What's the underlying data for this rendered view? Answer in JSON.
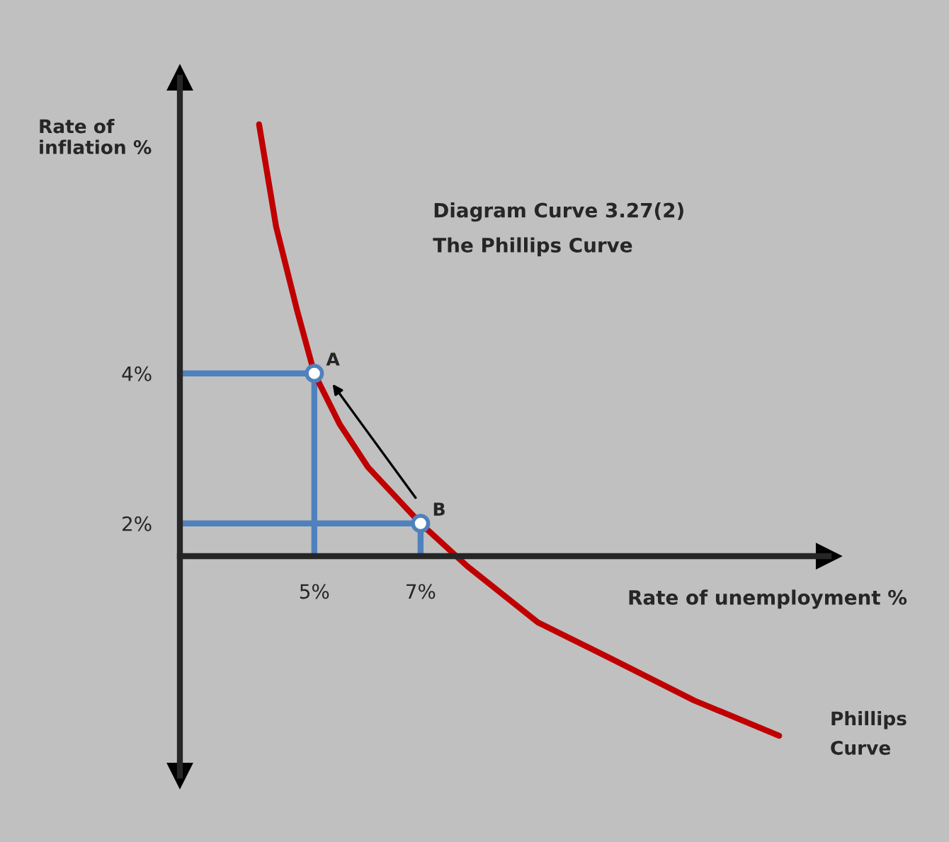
{
  "chart_data": {
    "type": "line",
    "title": "Diagram Curve 3.27(2)",
    "subtitle": "The Phillips Curve",
    "xlabel": "Rate of unemployment %",
    "ylabel": "Rate of inflation %",
    "xlim": [
      2.47,
      14.68
    ],
    "ylim": [
      -1.36,
      7.94
    ],
    "xticks": [
      {
        "value": 5,
        "label": "5%"
      },
      {
        "value": 7,
        "label": "7%"
      }
    ],
    "yticks": [
      {
        "value": 2,
        "label": "2%"
      },
      {
        "value": 4,
        "label": "4%"
      }
    ],
    "grid": false,
    "series": [
      {
        "color": "#4f81bd",
        "x": [
          2.47,
          5,
          5
        ],
        "values": [
          4,
          4,
          1.57
        ]
      },
      {
        "color": "#4f81bd",
        "x": [
          2.47,
          7,
          7
        ],
        "values": [
          2,
          2,
          1.57
        ]
      },
      {
        "color": "#c00000",
        "x": [
          3.96,
          4.28,
          4.68,
          5.0,
          5.48,
          6.01,
          7.0,
          7.88,
          9.21,
          10.55,
          12.15,
          13.75
        ],
        "values": [
          7.32,
          5.96,
          4.83,
          4.0,
          3.32,
          2.75,
          2.0,
          1.43,
          0.68,
          0.21,
          -0.36,
          -0.83
        ]
      },
      {
        "type": "scatter",
        "color": "#ffffff",
        "marker": "circle",
        "x": [
          5,
          7
        ],
        "values": [
          4,
          2
        ]
      }
    ],
    "annotations": [
      {
        "text": "A",
        "x": 5,
        "y": 4
      },
      {
        "text": "B",
        "x": 7,
        "y": 2
      },
      "Phillips Curve"
    ]
  }
}
